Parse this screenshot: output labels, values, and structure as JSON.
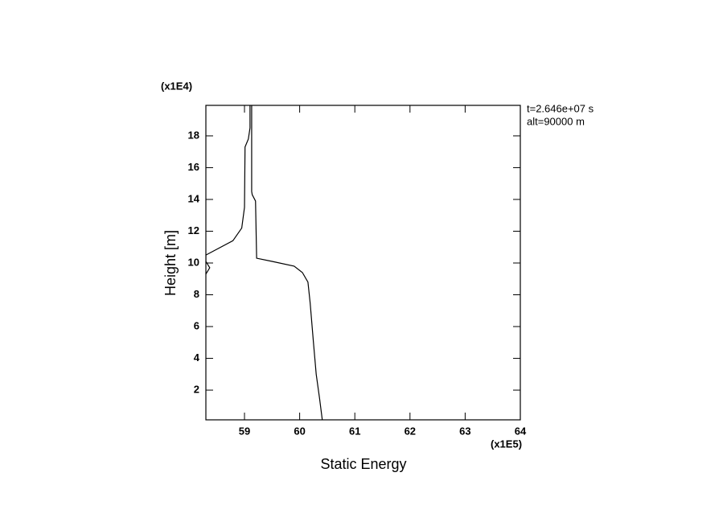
{
  "chart_data": {
    "type": "line",
    "xlabel": "Static Energy",
    "ylabel": "Height [m]",
    "x_scale_label": "(x1E5)",
    "y_scale_label": "(x1E4)",
    "annotations": [
      "t=2.646e+07 s",
      "alt=90000 m"
    ],
    "xlim": [
      58.3,
      64
    ],
    "ylim": [
      0.13,
      19.92
    ],
    "xticks": [
      59,
      60,
      61,
      62,
      63,
      64
    ],
    "yticks": [
      2,
      4,
      6,
      8,
      10,
      12,
      14,
      16,
      18
    ],
    "series": [
      {
        "color": "#000000",
        "x": [
          60.41,
          60.36,
          60.3,
          60.25,
          60.19,
          60.15,
          60.05,
          59.9,
          59.5,
          59.22,
          59.2,
          59.14,
          59.13,
          59.13
        ],
        "values": [
          0.13,
          1.5,
          3,
          5,
          7.5,
          8.8,
          9.4,
          9.8,
          10.1,
          10.3,
          13.9,
          14.3,
          14.5,
          19.92
        ]
      },
      {
        "color": "#000000",
        "x": [
          58.26,
          58.26,
          58.27,
          58.3,
          58.37,
          58.3,
          58.3,
          58.79,
          58.95,
          59.0,
          59.01,
          59.07,
          59.1,
          59.1
        ],
        "values": [
          0.13,
          7.0,
          8.8,
          9.3,
          9.7,
          10.1,
          10.5,
          11.4,
          12.2,
          13.5,
          17.3,
          17.8,
          18.5,
          19.92
        ]
      }
    ]
  }
}
